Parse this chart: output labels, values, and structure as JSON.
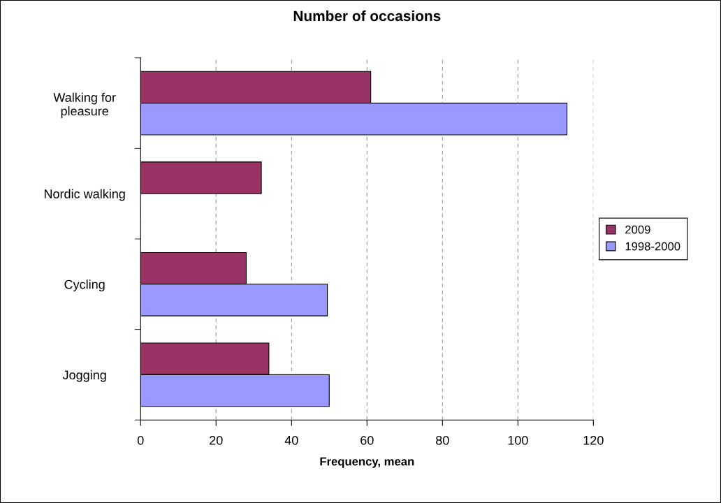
{
  "chart_data": {
    "type": "bar",
    "orientation": "horizontal",
    "title": "Number of occasions",
    "xlabel": "Frequency, mean",
    "categories": [
      "Walking for\npleasure",
      "Nordic walking",
      "Cycling",
      "Jogging"
    ],
    "series": [
      {
        "name": "2009",
        "color": "#993366",
        "values": [
          61,
          32,
          28,
          34
        ]
      },
      {
        "name": "1998-2000",
        "color": "#9999ff",
        "values": [
          113,
          null,
          49.5,
          50
        ]
      }
    ],
    "xlim": [
      0,
      120
    ],
    "xticks": [
      0,
      20,
      40,
      60,
      80,
      100,
      120
    ],
    "grid": "x",
    "legend": "right"
  }
}
